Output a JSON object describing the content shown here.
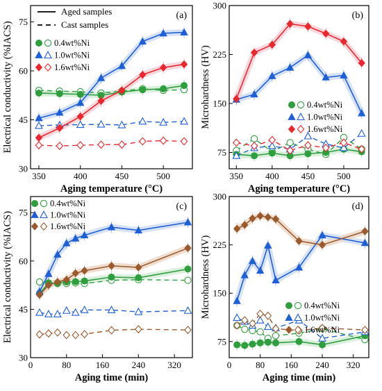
{
  "colors": {
    "green": "#2e9e3e",
    "blue": "#1f5fd6",
    "red": "#e8282e",
    "brown": "#9a5a2e",
    "aged_shade_red": "#f6c9d0",
    "aged_shade_blue": "#c9d8f4",
    "aged_shade_green": "#cfead2",
    "aged_shade_brown": "#ead3bf"
  },
  "chart_data": [
    {
      "id": "a",
      "panel_label": "(a)",
      "type": "line",
      "xlabel": "Aging temperature (°C)",
      "ylabel": "Electrical conductivity (%IACS)",
      "xlim": [
        340,
        535
      ],
      "ylim": [
        30,
        80
      ],
      "xticks": [
        350,
        400,
        450,
        500
      ],
      "yticks": [
        30,
        45,
        60,
        75
      ],
      "x": [
        350,
        375,
        400,
        425,
        450,
        475,
        500,
        525
      ],
      "style_legend": [
        {
          "label": "Aged samples",
          "dash": "solid"
        },
        {
          "label": "Cast samples",
          "dash": "dashed"
        }
      ],
      "series": [
        {
          "name": "0.4wt%Ni",
          "color_key": "green",
          "marker": "circle",
          "values": [
            53.2,
            53.0,
            52.8,
            52.5,
            53.5,
            54.2,
            54.5,
            55.5
          ],
          "cast": [
            54.0,
            53.8,
            53.6,
            53.2,
            53.8,
            54.5,
            54.0,
            54.2
          ]
        },
        {
          "name": "1.0wt%Ni",
          "color_key": "blue",
          "marker": "triangle",
          "values": [
            45.5,
            47.2,
            50.2,
            57.8,
            61.5,
            69.0,
            71.5,
            71.8
          ],
          "cast": [
            43.2,
            43.4,
            43.5,
            43.6,
            43.4,
            44.5,
            44.2,
            44.5
          ]
        },
        {
          "name": "1.6wt%Ni",
          "color_key": "red",
          "marker": "diamond",
          "values": [
            39.5,
            42.5,
            46.0,
            50.8,
            54.0,
            58.8,
            61.0,
            62.0
          ],
          "cast": [
            37.2,
            37.0,
            37.2,
            37.4,
            37.4,
            38.4,
            38.6,
            38.4
          ]
        }
      ]
    },
    {
      "id": "b",
      "panel_label": "(b)",
      "type": "line",
      "xlabel": "Aging temperature (°C)",
      "ylabel": "Microhardness (HV)",
      "xlim": [
        340,
        535
      ],
      "ylim": [
        50,
        300
      ],
      "xticks": [
        350,
        400,
        450,
        500
      ],
      "yticks": [
        75,
        150,
        225,
        300
      ],
      "x": [
        350,
        375,
        400,
        425,
        450,
        475,
        500,
        525
      ],
      "series": [
        {
          "name": "0.4wt%Ni",
          "color_key": "green",
          "marker": "circle",
          "values": [
            72,
            70,
            74,
            70,
            73,
            75,
            80,
            76
          ],
          "cast": [
            78,
            96,
            76,
            90,
            80,
            72,
            98,
            80
          ]
        },
        {
          "name": "1.0wt%Ni",
          "color_key": "blue",
          "marker": "triangle",
          "values": [
            156,
            164,
            192,
            205,
            224,
            190,
            193,
            135
          ],
          "cast": [
            70,
            82,
            85,
            80,
            100,
            88,
            82,
            104
          ]
        },
        {
          "name": "1.6wt%Ni",
          "color_key": "red",
          "marker": "diamond",
          "values": [
            157,
            228,
            240,
            272,
            268,
            257,
            245,
            212
          ],
          "cast": [
            90,
            85,
            94,
            78,
            86,
            82,
            90,
            80
          ]
        }
      ]
    },
    {
      "id": "c",
      "panel_label": "(c)",
      "type": "line",
      "xlabel": "Aging time (min)",
      "ylabel": "Electrical conductivity (%IACS)",
      "xlim": [
        0,
        360
      ],
      "ylim": [
        30,
        80
      ],
      "xticks": [
        0,
        80,
        160,
        240,
        320
      ],
      "yticks": [
        30,
        45,
        60,
        75
      ],
      "x": [
        20,
        40,
        60,
        80,
        100,
        120,
        180,
        240,
        350
      ],
      "series": [
        {
          "name": "0.4wt%Ni",
          "color_key": "green",
          "marker": "circle",
          "values": [
            50.0,
            53.0,
            53.2,
            53.5,
            53.6,
            53.8,
            55.0,
            54.8,
            57.5
          ],
          "cast": [
            53.5,
            53.2,
            53.0,
            53.0,
            53.2,
            53.0,
            54.0,
            54.2,
            54.0
          ]
        },
        {
          "name": "1.0wt%Ni",
          "color_key": "blue",
          "marker": "triangle",
          "values": [
            50.5,
            56.0,
            62.0,
            65.5,
            67.0,
            68.0,
            70.5,
            69.5,
            72.0
          ],
          "cast": [
            44.0,
            43.5,
            43.5,
            44.6,
            44.0,
            44.8,
            44.8,
            44.2,
            44.6
          ]
        },
        {
          "name": "1.6wt%Ni",
          "color_key": "brown",
          "marker": "diamond",
          "values": [
            49.5,
            52.5,
            53.5,
            54.2,
            56.2,
            57.0,
            58.5,
            58.0,
            64.0
          ],
          "cast": [
            37.2,
            37.5,
            37.8,
            37.0,
            37.0,
            37.3,
            38.5,
            38.8,
            38.6
          ]
        }
      ]
    },
    {
      "id": "d",
      "panel_label": "(d)",
      "type": "line",
      "xlabel": "Aging time (min)",
      "ylabel": "Microhardness (HV)",
      "xlim": [
        0,
        360
      ],
      "ylim": [
        50,
        300
      ],
      "xticks": [
        0,
        80,
        160,
        240,
        320
      ],
      "yticks": [
        75,
        150,
        225,
        300
      ],
      "x": [
        20,
        40,
        60,
        80,
        100,
        120,
        180,
        240,
        350
      ],
      "series": [
        {
          "name": "0.4wt%Ni",
          "color_key": "green",
          "marker": "circle",
          "values": [
            70,
            69,
            71,
            73,
            74,
            73,
            75,
            70,
            84
          ],
          "cast": [
            100,
            94,
            92,
            90,
            80,
            84,
            88,
            95,
            78
          ]
        },
        {
          "name": "1.0wt%Ni",
          "color_key": "blue",
          "marker": "triangle",
          "values": [
            138,
            178,
            200,
            185,
            224,
            170,
            190,
            240,
            228
          ],
          "cast": [
            112,
            106,
            100,
            108,
            98,
            96,
            108,
            80,
            90
          ]
        },
        {
          "name": "1.6wt%Ni",
          "color_key": "brown",
          "marker": "diamond",
          "values": [
            250,
            256,
            266,
            270,
            268,
            265,
            231,
            225,
            246
          ],
          "cast": [
            100,
            108,
            103,
            118,
            115,
            95,
            92,
            96,
            93
          ]
        }
      ]
    }
  ]
}
